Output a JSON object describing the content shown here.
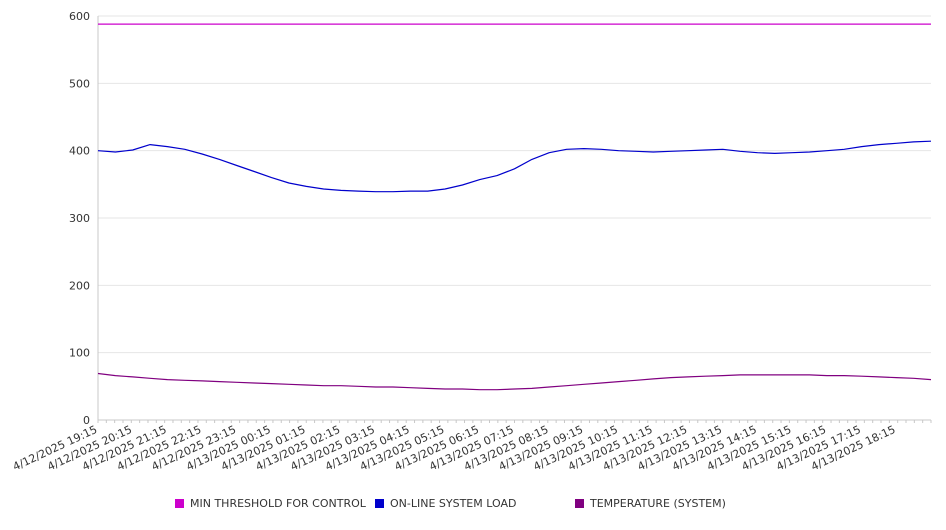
{
  "chart_data": {
    "type": "line",
    "title": "",
    "xlabel": "",
    "ylabel": "",
    "ylim": [
      0,
      600
    ],
    "yticks": [
      0,
      100,
      200,
      300,
      400,
      500,
      600
    ],
    "grid": "horizontal",
    "legend_placement": "bottom",
    "x_tick_labels": [
      "4/12/2025 19:15",
      "4/12/2025 20:15",
      "4/12/2025 21:15",
      "4/12/2025 22:15",
      "4/12/2025 23:15",
      "4/13/2025 00:15",
      "4/13/2025 01:15",
      "4/13/2025 02:15",
      "4/13/2025 03:15",
      "4/13/2025 04:15",
      "4/13/2025 05:15",
      "4/13/2025 06:15",
      "4/13/2025 07:15",
      "4/13/2025 08:15",
      "4/13/2025 09:15",
      "4/13/2025 10:15",
      "4/13/2025 11:15",
      "4/13/2025 12:15",
      "4/13/2025 13:15",
      "4/13/2025 14:15",
      "4/13/2025 15:15",
      "4/13/2025 16:15",
      "4/13/2025 17:15",
      "4/13/2025 18:15"
    ],
    "x": [
      "4/12/2025 19:15",
      "4/12/2025 19:45",
      "4/12/2025 20:15",
      "4/12/2025 20:45",
      "4/12/2025 21:15",
      "4/12/2025 21:45",
      "4/12/2025 22:15",
      "4/12/2025 22:45",
      "4/12/2025 23:15",
      "4/12/2025 23:45",
      "4/13/2025 00:15",
      "4/13/2025 00:45",
      "4/13/2025 01:15",
      "4/13/2025 01:45",
      "4/13/2025 02:15",
      "4/13/2025 02:45",
      "4/13/2025 03:15",
      "4/13/2025 03:45",
      "4/13/2025 04:15",
      "4/13/2025 04:45",
      "4/13/2025 05:15",
      "4/13/2025 05:45",
      "4/13/2025 06:15",
      "4/13/2025 06:45",
      "4/13/2025 07:15",
      "4/13/2025 07:45",
      "4/13/2025 08:15",
      "4/13/2025 08:45",
      "4/13/2025 09:15",
      "4/13/2025 09:45",
      "4/13/2025 10:15",
      "4/13/2025 10:45",
      "4/13/2025 11:15",
      "4/13/2025 11:45",
      "4/13/2025 12:15",
      "4/13/2025 12:45",
      "4/13/2025 13:15",
      "4/13/2025 13:45",
      "4/13/2025 14:15",
      "4/13/2025 14:45",
      "4/13/2025 15:15",
      "4/13/2025 15:45",
      "4/13/2025 16:15",
      "4/13/2025 16:45",
      "4/13/2025 17:15",
      "4/13/2025 17:45",
      "4/13/2025 18:15",
      "4/13/2025 18:45",
      "4/13/2025 19:15"
    ],
    "series": [
      {
        "name": "MIN THRESHOLD FOR CONTROL",
        "color": "#cc00cc",
        "values": [
          588,
          588,
          588,
          588,
          588,
          588,
          588,
          588,
          588,
          588,
          588,
          588,
          588,
          588,
          588,
          588,
          588,
          588,
          588,
          588,
          588,
          588,
          588,
          588,
          588,
          588,
          588,
          588,
          588,
          588,
          588,
          588,
          588,
          588,
          588,
          588,
          588,
          588,
          588,
          588,
          588,
          588,
          588,
          588,
          588,
          588,
          588,
          588,
          588
        ]
      },
      {
        "name": "ON-LINE SYSTEM LOAD",
        "color": "#0000cc",
        "values": [
          400,
          398,
          401,
          409,
          406,
          402,
          395,
          387,
          378,
          369,
          360,
          352,
          347,
          343,
          341,
          340,
          339,
          339,
          340,
          340,
          343,
          349,
          357,
          363,
          373,
          387,
          397,
          402,
          403,
          402,
          400,
          399,
          398,
          399,
          400,
          401,
          402,
          399,
          397,
          396,
          397,
          398,
          400,
          402,
          406,
          409,
          411,
          413,
          414
        ]
      },
      {
        "name": "TEMPERATURE (SYSTEM)",
        "color": "#800080",
        "values": [
          69,
          66,
          64,
          62,
          60,
          59,
          58,
          57,
          56,
          55,
          54,
          53,
          52,
          51,
          51,
          50,
          49,
          49,
          48,
          47,
          46,
          46,
          45,
          45,
          46,
          47,
          49,
          51,
          53,
          55,
          57,
          59,
          61,
          63,
          64,
          65,
          66,
          67,
          67,
          67,
          67,
          67,
          66,
          66,
          65,
          64,
          63,
          62,
          60
        ]
      }
    ]
  }
}
